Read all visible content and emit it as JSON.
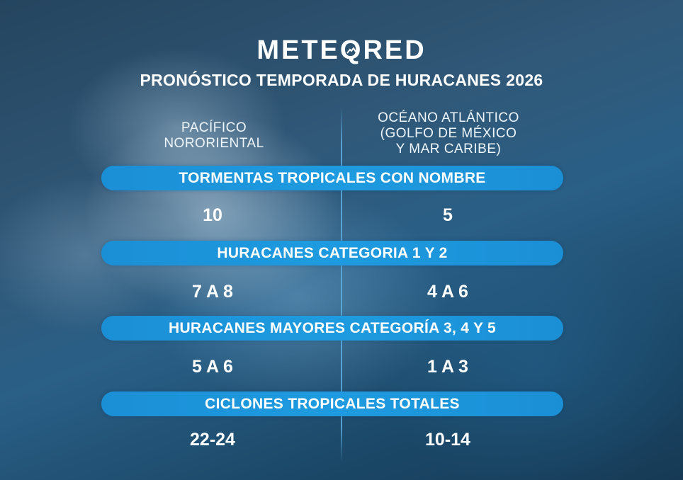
{
  "brand": {
    "name_before_q": "METE",
    "name_q": "Q",
    "name_after_q": "RED",
    "mark_icon": "bird-icon"
  },
  "title": "PRONÓSTICO TEMPORADA DE HURACANES 2026",
  "columns": {
    "left": [
      "PACÍFICO",
      "NORORIENTAL"
    ],
    "right": [
      "OCÉANO ATLÁNTICO",
      "(GOLFO DE MÉXICO",
      "Y MAR CARIBE)"
    ]
  },
  "rows": [
    {
      "label": "TORMENTAS TROPICALES CON NOMBRE",
      "left": "10",
      "right": "5"
    },
    {
      "label": "HURACANES CATEGORIA 1 Y 2",
      "left": "7 A 8",
      "right": "4 A 6"
    },
    {
      "label": "HURACANES MAYORES CATEGORÍA 3, 4 Y 5",
      "left": "5 A 6",
      "right": "1 A 3"
    },
    {
      "label": "CICLONES TROPICALES TOTALES",
      "left": "22-24",
      "right": "10-14"
    }
  ],
  "colors": {
    "band": "#1e9be0",
    "background": "#1d3f5c"
  }
}
